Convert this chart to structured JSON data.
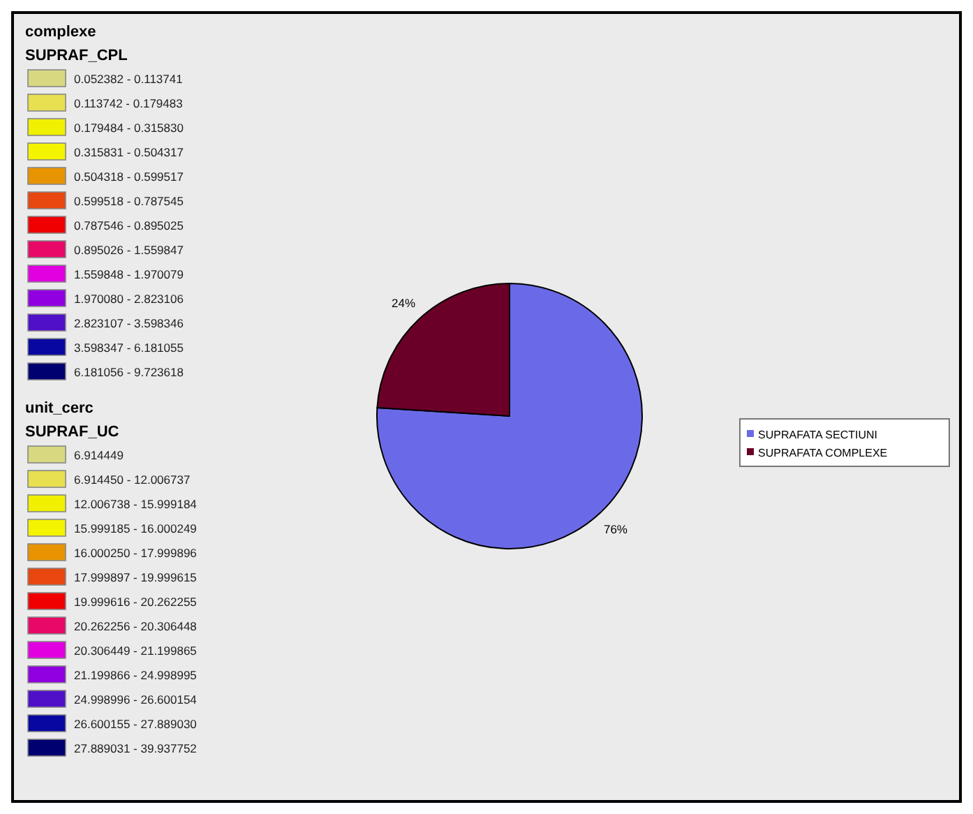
{
  "chart_data": [
    {
      "type": "other",
      "title": "complexe",
      "subtitle": "SUPRAF_CPL",
      "categories": [
        "0.052382 - 0.113741",
        "0.113742 - 0.179483",
        "0.179484 - 0.315830",
        "0.315831 - 0.504317",
        "0.504318 - 0.599517",
        "0.599518 - 0.787545",
        "0.787546 - 0.895025",
        "0.895026 - 1.559847",
        "1.559848 - 1.970079",
        "1.970080 - 2.823106",
        "2.823107 - 3.598346",
        "3.598347 - 6.181055",
        "6.181056 - 9.723618"
      ],
      "colors": [
        "#d8d880",
        "#e8e050",
        "#f0f000",
        "#f4f400",
        "#e89400",
        "#e84810",
        "#f00000",
        "#e80868",
        "#e000e0",
        "#9000e0",
        "#5010c8",
        "#0808a0",
        "#000070"
      ]
    },
    {
      "type": "other",
      "title": "unit_cerc",
      "subtitle": "SUPRAF_UC",
      "categories": [
        "6.914449",
        "6.914450 - 12.006737",
        "12.006738 - 15.999184",
        "15.999185 - 16.000249",
        "16.000250 - 17.999896",
        "17.999897 - 19.999615",
        "19.999616 - 20.262255",
        "20.262256 - 20.306448",
        "20.306449 - 21.199865",
        "21.199866 - 24.998995",
        "24.998996 - 26.600154",
        "26.600155 - 27.889030",
        "27.889031 - 39.937752"
      ],
      "colors": [
        "#d8d880",
        "#e8e050",
        "#f0f000",
        "#f4f400",
        "#e89400",
        "#e84810",
        "#f00000",
        "#e80868",
        "#e000e0",
        "#9000e0",
        "#5010c8",
        "#0808a0",
        "#000070"
      ]
    },
    {
      "type": "pie",
      "categories": [
        "SUPRAFATA SECTIUNI",
        "SUPRAFATA COMPLEXE"
      ],
      "values": [
        76,
        24
      ],
      "colors": [
        "#6a6ae8",
        "#6a0028"
      ],
      "value_labels": [
        "76%",
        "24%"
      ],
      "legend": "right"
    }
  ]
}
